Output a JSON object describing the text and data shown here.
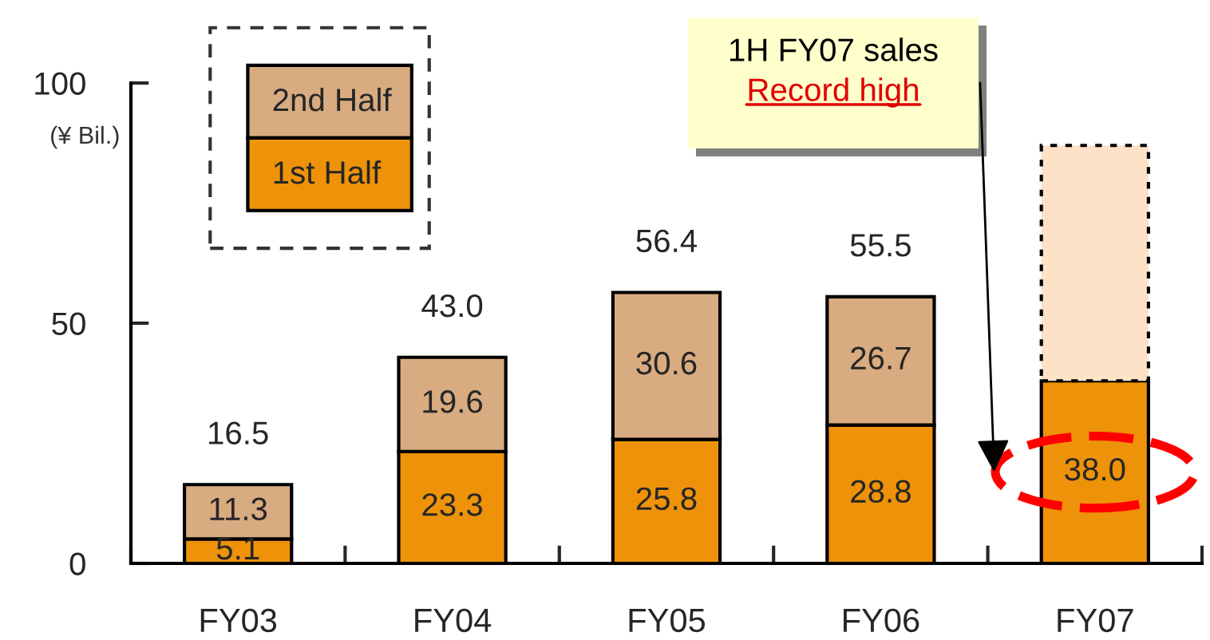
{
  "chart_data": {
    "type": "bar",
    "stacked": true,
    "categories": [
      "FY03",
      "FY04",
      "FY05",
      "FY06",
      "FY07"
    ],
    "series": [
      {
        "name": "1st Half",
        "color": "#ee920a",
        "values": [
          5.1,
          23.3,
          25.8,
          28.8,
          38.0
        ],
        "value_labels": [
          "5.1",
          "23.3",
          "25.8",
          "28.8",
          "38.0"
        ]
      },
      {
        "name": "2nd Half",
        "color": "#d9ab80",
        "values": [
          11.3,
          19.6,
          30.6,
          26.7,
          null
        ],
        "value_labels": [
          "11.3",
          "19.6",
          "30.6",
          "26.7",
          null
        ]
      },
      {
        "color": "#fde2c8",
        "values": [
          null,
          null,
          null,
          null,
          49
        ],
        "line_style": "dotted"
      }
    ],
    "totals": [
      "16.5",
      "43.0",
      "56.4",
      "55.5",
      null
    ],
    "ylabel": "(¥ Bil.)",
    "ylim": [
      0,
      100
    ],
    "yticks": [
      0,
      50,
      100
    ],
    "legend": "top left",
    "annotations": [
      "1H FY07 sales",
      "Record high"
    ]
  }
}
